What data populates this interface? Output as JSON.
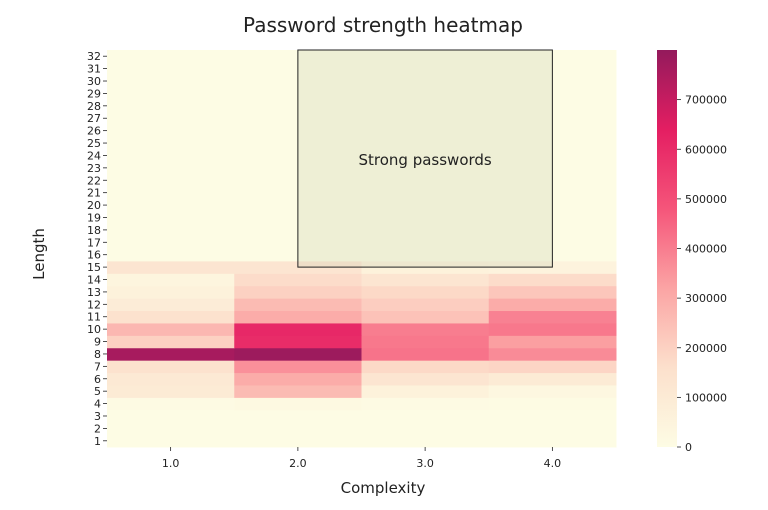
{
  "chart_data": {
    "type": "heatmap",
    "title": "Password strength heatmap",
    "xlabel": "Complexity",
    "ylabel": "Length",
    "x": [
      "1.0",
      "2.0",
      "3.0",
      "4.0"
    ],
    "y": [
      "1",
      "2",
      "3",
      "4",
      "5",
      "6",
      "7",
      "8",
      "9",
      "10",
      "11",
      "12",
      "13",
      "14",
      "15",
      "16",
      "17",
      "18",
      "19",
      "20",
      "21",
      "22",
      "23",
      "24",
      "25",
      "26",
      "27",
      "28",
      "29",
      "30",
      "31",
      "32"
    ],
    "values": [
      [
        0,
        0,
        0,
        0
      ],
      [
        0,
        0,
        0,
        0
      ],
      [
        0,
        0,
        0,
        0
      ],
      [
        10000,
        20000,
        10000,
        5000
      ],
      [
        100000,
        260000,
        60000,
        30000
      ],
      [
        110000,
        300000,
        130000,
        100000
      ],
      [
        150000,
        360000,
        180000,
        190000
      ],
      [
        760000,
        780000,
        420000,
        370000
      ],
      [
        200000,
        600000,
        410000,
        330000
      ],
      [
        270000,
        610000,
        400000,
        410000
      ],
      [
        150000,
        300000,
        240000,
        390000
      ],
      [
        90000,
        260000,
        210000,
        300000
      ],
      [
        60000,
        200000,
        180000,
        230000
      ],
      [
        40000,
        170000,
        130000,
        170000
      ],
      [
        130000,
        130000,
        60000,
        50000
      ],
      [
        0,
        0,
        0,
        0
      ],
      [
        0,
        0,
        0,
        0
      ],
      [
        0,
        0,
        0,
        0
      ],
      [
        0,
        0,
        0,
        0
      ],
      [
        0,
        0,
        0,
        0
      ],
      [
        0,
        0,
        0,
        0
      ],
      [
        0,
        0,
        0,
        0
      ],
      [
        0,
        0,
        0,
        0
      ],
      [
        0,
        0,
        0,
        0
      ],
      [
        0,
        0,
        0,
        0
      ],
      [
        0,
        0,
        0,
        0
      ],
      [
        0,
        0,
        0,
        0
      ],
      [
        0,
        0,
        0,
        0
      ],
      [
        0,
        0,
        0,
        0
      ],
      [
        0,
        0,
        0,
        0
      ],
      [
        0,
        0,
        0,
        0
      ],
      [
        0,
        0,
        0,
        0
      ]
    ],
    "colorbar": {
      "min": 0,
      "max": 800000,
      "ticks": [
        "0",
        "100000",
        "200000",
        "300000",
        "400000",
        "500000",
        "600000",
        "700000"
      ],
      "colors": [
        "#fdfce4",
        "#fce0cc",
        "#fba4a4",
        "#f5557a",
        "#e41e62",
        "#931a5c"
      ]
    },
    "annotation": {
      "text": "Strong passwords",
      "x_range": [
        "3.0",
        "4.0"
      ],
      "y_range": [
        "15",
        "32"
      ]
    }
  }
}
